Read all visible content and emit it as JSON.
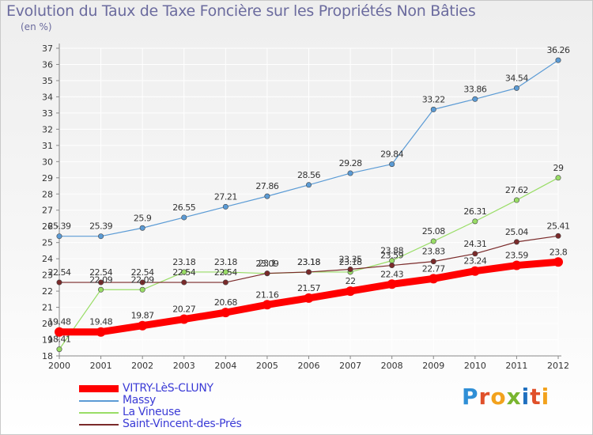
{
  "title": "Evolution du Taux de Taxe Foncière sur les Propriétés Non Bâties",
  "subtitle": "(en %)",
  "colors": {
    "axis": "#888888",
    "grid": "#ffffff",
    "tick_text": "#333333",
    "value_text": "#333333",
    "legend_text": "#3b3bd6"
  },
  "chart_data": {
    "type": "line",
    "x": [
      "2000",
      "2001",
      "2002",
      "2003",
      "2004",
      "2005",
      "2006",
      "2007",
      "2008",
      "2009",
      "2010",
      "2011",
      "2012"
    ],
    "ylim": [
      18,
      37
    ],
    "yticks": [
      18,
      19,
      20,
      21,
      22,
      23,
      24,
      25,
      26,
      27,
      28,
      29,
      30,
      31,
      32,
      33,
      34,
      35,
      36,
      37
    ],
    "grid": true,
    "legend": "bottom-left",
    "series": [
      {
        "name": "VITRY-LèS-CLUNY",
        "color": "#ff0000",
        "width": 9,
        "values": [
          19.48,
          19.48,
          19.87,
          20.27,
          20.68,
          21.16,
          21.57,
          22,
          22.43,
          22.77,
          23.24,
          23.59,
          23.8
        ],
        "labels": [
          "19.48",
          "19.48",
          "19.87",
          "20.27",
          "20.68",
          "21.16",
          "21.57",
          "22",
          "22.43",
          "22.77",
          "23.24",
          "23.59",
          "23.8"
        ]
      },
      {
        "name": "Massy",
        "color": "#5b9bd5",
        "width": 1.2,
        "values": [
          25.39,
          25.39,
          25.9,
          26.55,
          27.21,
          27.86,
          28.56,
          29.28,
          29.84,
          33.22,
          33.86,
          34.54,
          36.26
        ],
        "labels": [
          "25.39",
          "25.39",
          "25.9",
          "26.55",
          "27.21",
          "27.86",
          "28.56",
          "29.28",
          "29.84",
          "33.22",
          "33.86",
          "34.54",
          "36.26"
        ]
      },
      {
        "name": "La Vineuse",
        "color": "#99dd66",
        "width": 1.2,
        "values": [
          18.41,
          22.09,
          22.09,
          23.18,
          23.18,
          23.09,
          23.18,
          23.18,
          23.88,
          25.08,
          26.31,
          27.62,
          29
        ],
        "labels": [
          "18.41",
          "22.09",
          "22.09",
          "23.18",
          "23.18",
          "23.09",
          "23.18",
          "23.18",
          "23.88",
          "25.08",
          "26.31",
          "27.62",
          "29"
        ]
      },
      {
        "name": "Saint-Vincent-des-Prés",
        "color": "#7a2a2a",
        "width": 1.2,
        "values": [
          22.54,
          22.54,
          22.54,
          22.54,
          22.54,
          23.1,
          23.18,
          23.35,
          23.59,
          23.83,
          24.31,
          25.04,
          25.41
        ],
        "labels": [
          "22.54",
          "22.54",
          "22.54",
          "22.54",
          "22.54",
          "23.1",
          "23.18",
          "23.35",
          "23.59",
          "23.83",
          "24.31",
          "25.04",
          "25.41"
        ]
      }
    ]
  },
  "legend": {
    "items": [
      "VITRY-LèS-CLUNY",
      "Massy",
      "La Vineuse",
      "Saint-Vincent-des-Prés"
    ]
  },
  "logo": {
    "letters": [
      "P",
      "r",
      "o",
      "x",
      "i",
      "t",
      "i"
    ]
  }
}
